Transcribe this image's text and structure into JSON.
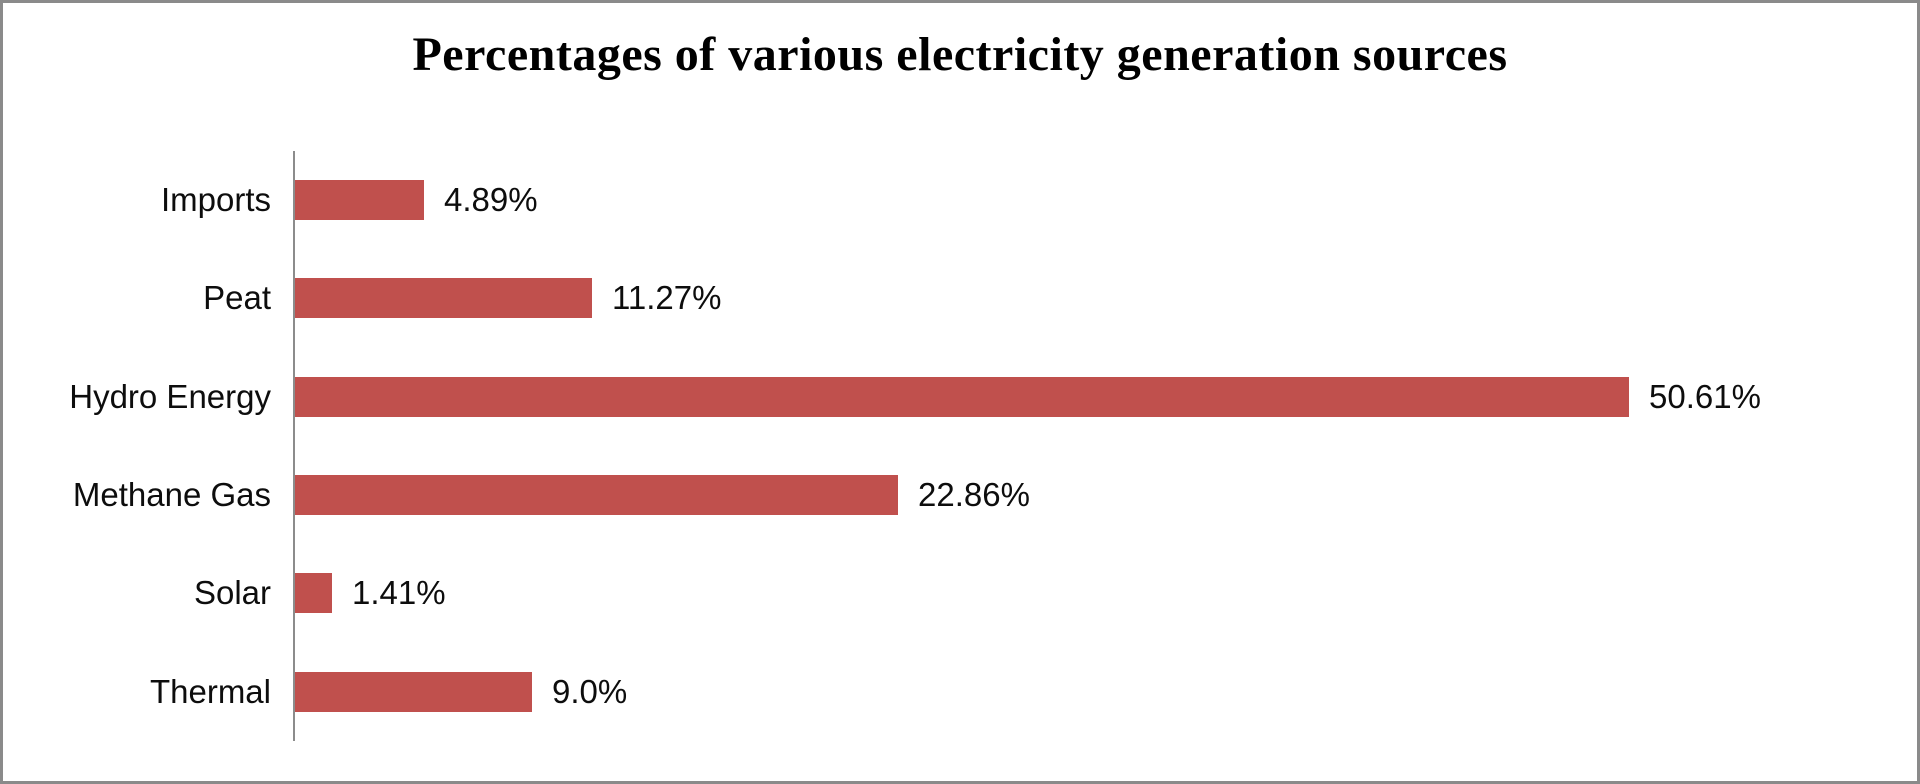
{
  "title": "Percentages of various electricity generation sources",
  "colors": {
    "bar": "#c0504d",
    "axis": "#8c8c8c",
    "frame_border": "#8a8a8a",
    "text": "#0d0d0d",
    "background": "#ffffff"
  },
  "chart_data": {
    "type": "bar",
    "orientation": "horizontal",
    "title": "Percentages of various electricity generation sources",
    "categories": [
      "Imports",
      "Peat",
      "Hydro Energy",
      "Methane Gas",
      "Solar",
      "Thermal"
    ],
    "values": [
      4.89,
      11.27,
      50.61,
      22.86,
      1.41,
      9.0
    ],
    "value_labels": [
      "4.89%",
      "11.27%",
      "50.61%",
      "22.86%",
      "1.41%",
      "9.0%"
    ],
    "xlabel": "",
    "ylabel": "",
    "xlim": [
      0,
      55
    ],
    "unit": "%",
    "grid": false,
    "legend": false,
    "data_labels_position": "outside-end"
  }
}
